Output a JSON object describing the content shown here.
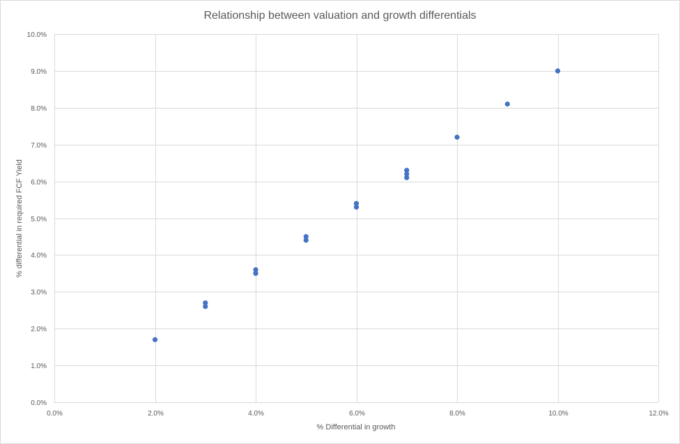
{
  "chart_data": {
    "type": "scatter",
    "title": "Relationship between valuation and growth differentials",
    "xlabel": "% Differential in growth",
    "ylabel": "% differential in required FCF Yield",
    "xlim": [
      0,
      12
    ],
    "ylim": [
      0,
      10
    ],
    "x_ticks": [
      "0.0%",
      "2.0%",
      "4.0%",
      "6.0%",
      "8.0%",
      "10.0%",
      "12.0%"
    ],
    "y_ticks": [
      "0.0%",
      "1.0%",
      "2.0%",
      "3.0%",
      "4.0%",
      "5.0%",
      "6.0%",
      "7.0%",
      "8.0%",
      "9.0%",
      "10.0%"
    ],
    "grid": true,
    "marker_color": "#4472c4",
    "series": [
      {
        "name": "Series1",
        "points": [
          [
            2.0,
            1.7
          ],
          [
            3.0,
            2.6
          ],
          [
            3.0,
            2.7
          ],
          [
            4.0,
            3.5
          ],
          [
            4.0,
            3.6
          ],
          [
            5.0,
            4.4
          ],
          [
            5.0,
            4.5
          ],
          [
            6.0,
            5.3
          ],
          [
            6.0,
            5.4
          ],
          [
            7.0,
            6.1
          ],
          [
            7.0,
            6.2
          ],
          [
            7.0,
            6.3
          ],
          [
            8.0,
            7.2
          ],
          [
            9.0,
            8.1
          ],
          [
            10.0,
            9.0
          ]
        ]
      }
    ]
  }
}
